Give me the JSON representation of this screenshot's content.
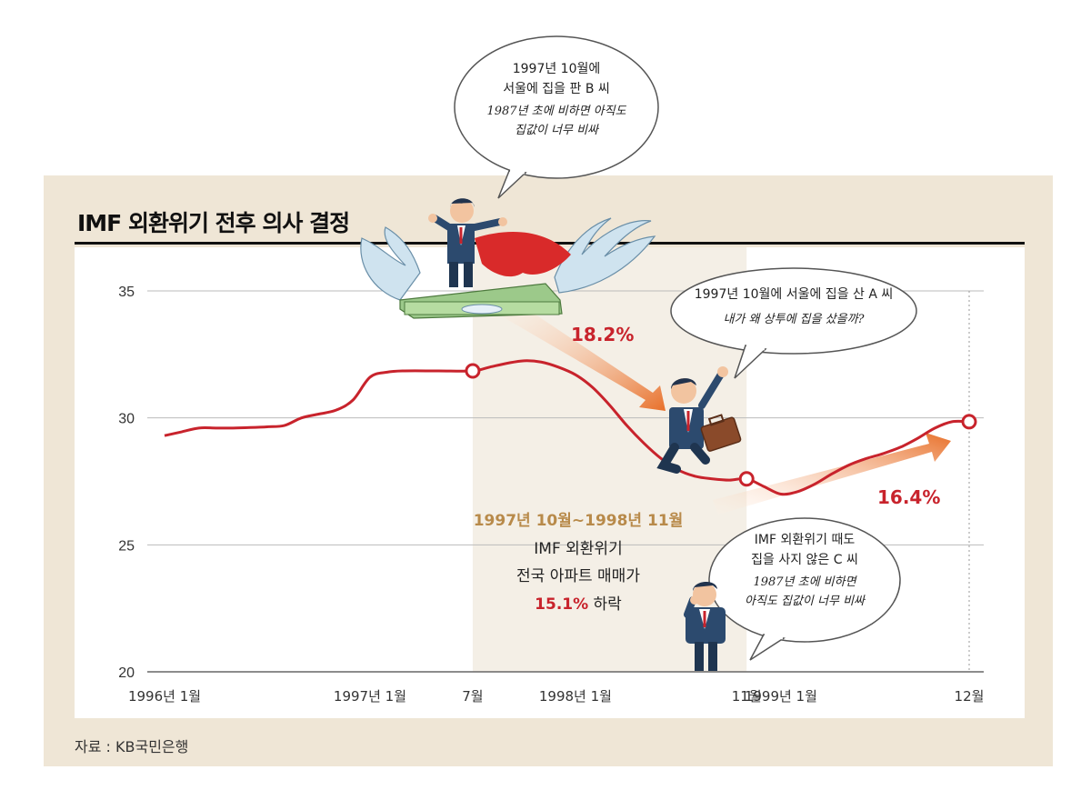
{
  "title": "IMF 외환위기 전후 의사 결정",
  "source": "자료 : KB국민은행",
  "colors": {
    "line": "#c8232c",
    "frame": "#efe6d6",
    "shade": "#f4efe6",
    "arrow": "#e8702a"
  },
  "chart_data": {
    "type": "line",
    "xlabel": "",
    "ylabel": "",
    "ylim": [
      20,
      35
    ],
    "yticks": [
      20,
      25,
      30,
      35
    ],
    "x_tick_labels": [
      {
        "t": 0,
        "label": "1996년 1월"
      },
      {
        "t": 12,
        "label": "1997년 1월"
      },
      {
        "t": 18,
        "label": "7월"
      },
      {
        "t": 24,
        "label": "1998년 1월"
      },
      {
        "t": 34,
        "label": "11월"
      },
      {
        "t": 36,
        "label": "1999년 1월"
      },
      {
        "t": 47,
        "label": "12월"
      }
    ],
    "grid": "horizontal",
    "shaded_range": [
      18,
      34
    ],
    "marked_points": [
      18,
      34,
      47
    ],
    "series": [
      {
        "values": [
          [
            0,
            29.3
          ],
          [
            1,
            29.45
          ],
          [
            2,
            29.6
          ],
          [
            3,
            29.6
          ],
          [
            4,
            29.6
          ],
          [
            5,
            29.62
          ],
          [
            6,
            29.65
          ],
          [
            7,
            29.7
          ],
          [
            8,
            30.0
          ],
          [
            9,
            30.15
          ],
          [
            10,
            30.3
          ],
          [
            11,
            30.7
          ],
          [
            12,
            31.6
          ],
          [
            13,
            31.8
          ],
          [
            14,
            31.85
          ],
          [
            16,
            31.85
          ],
          [
            18,
            31.85
          ],
          [
            19,
            32.0
          ],
          [
            20,
            32.15
          ],
          [
            21,
            32.25
          ],
          [
            22,
            32.2
          ],
          [
            23,
            32.0
          ],
          [
            24,
            31.7
          ],
          [
            25,
            31.2
          ],
          [
            26,
            30.5
          ],
          [
            27,
            29.7
          ],
          [
            28,
            29.0
          ],
          [
            29,
            28.4
          ],
          [
            30,
            27.95
          ],
          [
            31,
            27.7
          ],
          [
            32,
            27.6
          ],
          [
            33,
            27.55
          ],
          [
            34,
            27.6
          ],
          [
            35,
            27.3
          ],
          [
            36,
            27.0
          ],
          [
            37,
            27.1
          ],
          [
            38,
            27.4
          ],
          [
            39,
            27.8
          ],
          [
            40,
            28.15
          ],
          [
            41,
            28.4
          ],
          [
            42,
            28.6
          ],
          [
            43,
            28.85
          ],
          [
            44,
            29.2
          ],
          [
            45,
            29.6
          ],
          [
            46,
            29.85
          ],
          [
            47,
            29.85
          ]
        ]
      }
    ]
  },
  "annotations": {
    "period": "1997년 10월~1998년 11월",
    "line1": "IMF 외환위기",
    "line2": "전국 아파트 매매가",
    "drop_pct": "15.1%",
    "drop_word": " 하락",
    "pct_down": "18.2%",
    "pct_up": "16.4%"
  },
  "bubbles": {
    "b": {
      "line1": "1997년 10월에",
      "line2": "서울에 집을 판 B 씨",
      "hand1": "1987년 초에 비하면 아직도",
      "hand2": "집값이 너무 비싸"
    },
    "a": {
      "line1": "1997년 10월에 서울에 집을 산 A 씨",
      "hand1": "내가 왜 상투에 집을 샀을까?"
    },
    "c": {
      "line1": "IMF 외환위기 때도",
      "line2": "집을 사지 않은 C 씨",
      "hand1": "1987년 초에 비하면",
      "hand2": "아직도 집값이 너무 비싸"
    }
  },
  "illustrations": [
    "flying-money-businessman",
    "falling-businessman",
    "worried-businessman"
  ]
}
